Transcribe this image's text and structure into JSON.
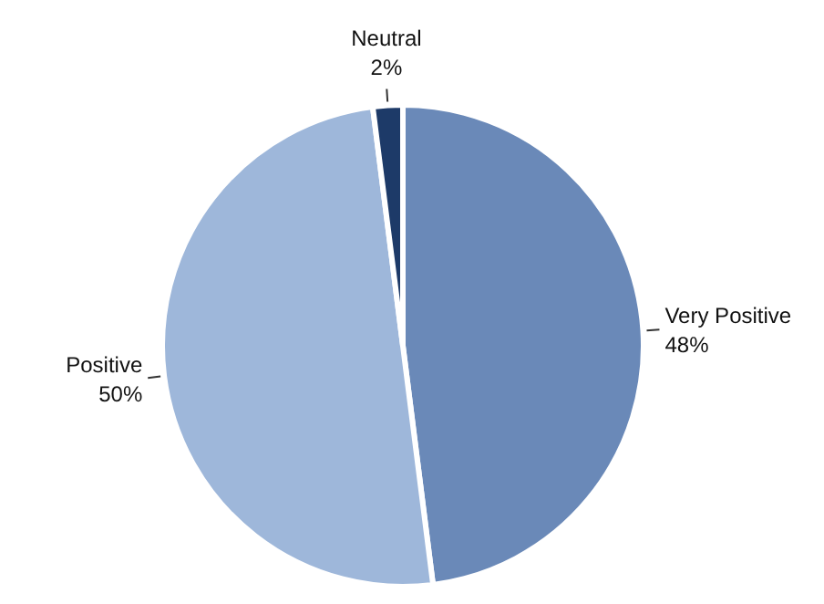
{
  "chart_data": {
    "type": "pie",
    "categories": [
      "Very Positive",
      "Positive",
      "Neutral"
    ],
    "values": [
      48,
      50,
      2
    ],
    "value_labels": [
      "48%",
      "50%",
      "2%"
    ],
    "colors": [
      "#6a89b8",
      "#9eb7da",
      "#1d3a68"
    ],
    "legend": false
  }
}
